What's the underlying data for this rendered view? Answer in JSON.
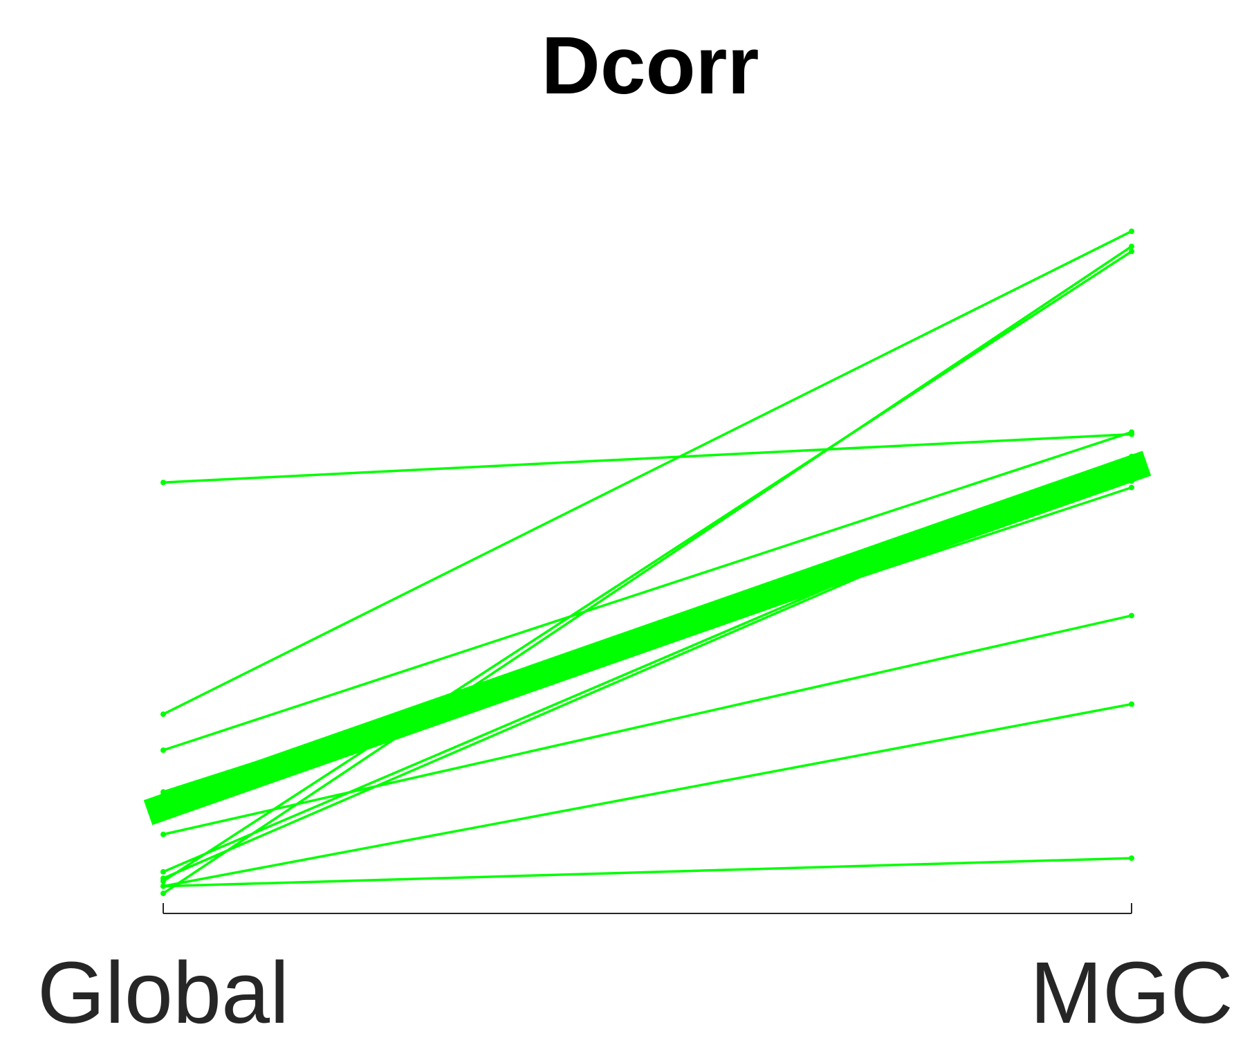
{
  "chart_data": {
    "type": "line",
    "title": "Dcorr",
    "categories": [
      "Global",
      "MGC"
    ],
    "xlabel": "",
    "ylabel": "",
    "ylim": [
      0,
      1
    ],
    "grid": false,
    "legend": "none",
    "line_color": "#00ff00",
    "axis_color": "#262626",
    "series": [
      {
        "values": [
          0.57,
          0.637
        ]
      },
      {
        "values": [
          0.248,
          0.919
        ]
      },
      {
        "values": [
          0.198,
          0.64
        ]
      },
      {
        "values": [
          0.136,
          0.606
        ]
      },
      {
        "values": [
          0.14,
          0.572
        ]
      },
      {
        "values": [
          0.12,
          0.563
        ]
      },
      {
        "values": [
          0.081,
          0.385
        ]
      },
      {
        "values": [
          0.016,
          0.891
        ]
      },
      {
        "values": [
          0.02,
          0.602
        ]
      },
      {
        "values": [
          0.029,
          0.604
        ]
      },
      {
        "values": [
          0.009,
          0.262
        ]
      },
      {
        "values": [
          0.009,
          0.048
        ]
      },
      {
        "values": [
          -0.001,
          0.898
        ]
      }
    ],
    "mean_series": {
      "values": [
        0.118,
        0.59
      ]
    }
  }
}
